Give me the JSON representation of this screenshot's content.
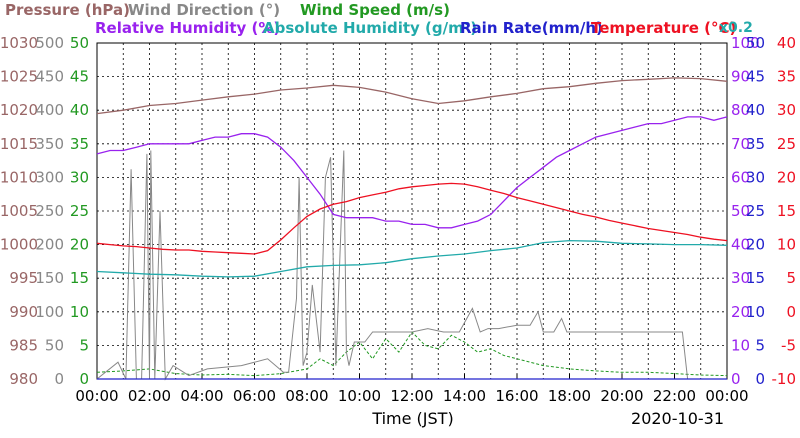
{
  "chart_data": {
    "type": "line",
    "legend": [
      {
        "label": "Pressure (hPa)",
        "color": "#996666"
      },
      {
        "label": "Wind Direction (°)",
        "color": "#888888"
      },
      {
        "label": "Wind Speed (m/s)",
        "color": "#229922"
      },
      {
        "label": "Relative Humidity (%)",
        "color": "#9922ee"
      },
      {
        "label": "Absolute Humidity (g/m³)",
        "color": "#22aaaa"
      },
      {
        "label": "Rain Rate(mm/h)",
        "color": "#2222cc"
      },
      {
        "label": "Temperature (°C)",
        "color": "#ee1122"
      },
      {
        "label": "x0.2",
        "color": "#22aaaa"
      }
    ],
    "xlabel": "Time (JST)",
    "date": "2020-10-31",
    "x_ticks": [
      "00:00",
      "02:00",
      "04:00",
      "06:00",
      "08:00",
      "10:00",
      "12:00",
      "14:00",
      "16:00",
      "18:00",
      "20:00",
      "22:00",
      "00:00"
    ],
    "grid": true,
    "axes": {
      "pressure": {
        "ticks": [
          "980",
          "985",
          "990",
          "995",
          "1000",
          "1005",
          "1010",
          "1015",
          "1020",
          "1025",
          "1030"
        ],
        "ylim": [
          980,
          1030
        ],
        "color": "#996666"
      },
      "wind_direction": {
        "ticks": [
          "0",
          "50",
          "100",
          "150",
          "200",
          "250",
          "300",
          "350",
          "400",
          "450",
          "500"
        ],
        "ylim": [
          0,
          500
        ],
        "color": "#888888"
      },
      "wind_speed": {
        "ticks": [
          "0",
          "5",
          "10",
          "15",
          "20",
          "25",
          "30",
          "35",
          "40",
          "45",
          "50"
        ],
        "ylim": [
          0,
          50
        ],
        "color": "#229922"
      },
      "relative_humidity": {
        "ticks": [
          "0",
          "10",
          "20",
          "30",
          "40",
          "50",
          "60",
          "70",
          "80",
          "90",
          "100"
        ],
        "ylim": [
          0,
          100
        ],
        "color": "#9922ee"
      },
      "rain_rate": {
        "ticks": [
          "0",
          "5",
          "10",
          "15",
          "20",
          "25",
          "30",
          "35",
          "40",
          "45",
          "50"
        ],
        "ylim": [
          0,
          50
        ],
        "color": "#2222cc"
      },
      "temperature": {
        "ticks": [
          "-10",
          "-5",
          "0",
          "5",
          "10",
          "15",
          "20",
          "25",
          "30",
          "35",
          "40"
        ],
        "ylim": [
          -10,
          40
        ],
        "color": "#ee1122"
      }
    },
    "x_range_hours": [
      0,
      24
    ],
    "series": [
      {
        "name": "Pressure (hPa)",
        "color": "#996666",
        "axis": "pressure",
        "x": [
          0,
          1,
          2,
          3,
          4,
          5,
          6,
          7,
          8,
          9,
          10,
          11,
          12,
          13,
          14,
          15,
          16,
          17,
          18,
          19,
          20,
          21,
          22,
          23,
          24
        ],
        "y": [
          1019.5,
          1020.0,
          1020.7,
          1021.0,
          1021.5,
          1022.0,
          1022.4,
          1023.0,
          1023.3,
          1023.7,
          1023.4,
          1022.7,
          1021.7,
          1021.0,
          1021.4,
          1022.0,
          1022.5,
          1023.2,
          1023.5,
          1024.0,
          1024.4,
          1024.6,
          1024.8,
          1024.7,
          1024.3
        ]
      },
      {
        "name": "Relative Humidity (%)",
        "color": "#9922ee",
        "axis": "relative_humidity",
        "x": [
          0,
          0.5,
          1,
          1.5,
          2,
          2.5,
          3,
          3.5,
          4,
          4.5,
          5,
          5.5,
          6,
          6.5,
          7,
          7.5,
          8,
          8.5,
          9,
          9.5,
          10,
          10.5,
          11,
          11.5,
          12,
          12.5,
          13,
          13.5,
          14,
          14.5,
          15,
          15.5,
          16,
          16.5,
          17,
          17.5,
          18,
          18.5,
          19,
          19.5,
          20,
          20.5,
          21,
          21.5,
          22,
          22.5,
          23,
          23.5,
          24
        ],
        "y": [
          67,
          68,
          68,
          69,
          70,
          70,
          70,
          70,
          71,
          72,
          72,
          73,
          73,
          72,
          69,
          65,
          60,
          55,
          49,
          48,
          48,
          48,
          47,
          47,
          46,
          46,
          45,
          45,
          46,
          47,
          49,
          53,
          57,
          60,
          63,
          66,
          68,
          70,
          72,
          73,
          74,
          75,
          76,
          76,
          77,
          78,
          78,
          77,
          78
        ]
      },
      {
        "name": "Absolute Humidity (g/m³) x0.2",
        "color": "#22aaaa",
        "axis": "temperature",
        "x": [
          0,
          1,
          2,
          3,
          4,
          5,
          6,
          7,
          8,
          9,
          10,
          11,
          12,
          13,
          14,
          15,
          16,
          17,
          18,
          19,
          20,
          21,
          22,
          23,
          24
        ],
        "y": [
          6.0,
          5.8,
          5.6,
          5.5,
          5.3,
          5.2,
          5.3,
          6.0,
          6.7,
          6.9,
          7.0,
          7.3,
          7.9,
          8.3,
          8.6,
          9.1,
          9.5,
          10.3,
          10.6,
          10.5,
          10.2,
          10.1,
          10.0,
          10.0,
          9.9
        ]
      },
      {
        "name": "Temperature (°C)",
        "color": "#ee1122",
        "axis": "temperature",
        "x": [
          0,
          0.5,
          1,
          1.5,
          2,
          2.5,
          3,
          3.5,
          4,
          4.5,
          5,
          5.5,
          6,
          6.5,
          7,
          7.5,
          8,
          8.5,
          9,
          9.5,
          10,
          10.5,
          11,
          11.5,
          12,
          12.5,
          13,
          13.5,
          14,
          14.5,
          15,
          15.5,
          16,
          16.5,
          17,
          17.5,
          18,
          18.5,
          19,
          19.5,
          20,
          20.5,
          21,
          21.5,
          22,
          22.5,
          23,
          23.5,
          24
        ],
        "y": [
          10.2,
          10.0,
          9.8,
          9.7,
          9.5,
          9.3,
          9.2,
          9.2,
          9.0,
          8.9,
          8.8,
          8.7,
          8.6,
          9.1,
          10.7,
          12.5,
          14.2,
          15.3,
          16.0,
          16.4,
          17.0,
          17.4,
          17.8,
          18.3,
          18.6,
          18.8,
          19.0,
          19.1,
          19.0,
          18.6,
          18.1,
          17.6,
          17.0,
          16.5,
          16.0,
          15.5,
          15.0,
          14.5,
          14.1,
          13.6,
          13.2,
          12.8,
          12.4,
          12.1,
          11.8,
          11.5,
          11.1,
          10.8,
          10.6
        ]
      },
      {
        "name": "Wind Direction (°)",
        "color": "#888888",
        "axis": "wind_direction",
        "x": [
          0,
          0.8,
          1.1,
          1.3,
          1.5,
          1.7,
          1.9,
          2.0,
          2.05,
          2.2,
          2.4,
          2.6,
          2.9,
          3.5,
          4.2,
          5.5,
          6.5,
          7.1,
          7.3,
          7.6,
          7.7,
          7.85,
          8.0,
          8.2,
          8.5,
          8.7,
          8.9,
          9.1,
          9.4,
          9.5,
          9.6,
          9.8,
          10.2,
          10.5,
          11.2,
          12.0,
          12.6,
          13.2,
          13.8,
          14.3,
          14.6,
          14.9,
          15.3,
          16.0,
          16.5,
          16.8,
          17.0,
          17.4,
          17.7,
          17.9,
          18.1,
          18.6,
          19.5,
          20.5,
          21.5,
          22.3,
          22.5,
          23.0,
          24
        ],
        "y": [
          0,
          25,
          0,
          312,
          0,
          0,
          335,
          0,
          340,
          0,
          250,
          0,
          20,
          5,
          15,
          20,
          30,
          10,
          10,
          120,
          300,
          20,
          40,
          140,
          40,
          300,
          330,
          20,
          340,
          40,
          20,
          55,
          55,
          70,
          70,
          70,
          75,
          70,
          70,
          105,
          70,
          75,
          75,
          80,
          80,
          100,
          70,
          70,
          90,
          70,
          70,
          70,
          70,
          70,
          70,
          70,
          0,
          0,
          0
        ]
      },
      {
        "name": "Wind Speed (m/s)",
        "color": "#229922",
        "axis": "wind_speed",
        "x": [
          0,
          1,
          2,
          3,
          4,
          5,
          6,
          7,
          8,
          8.5,
          9,
          9.5,
          10,
          10.5,
          11,
          11.5,
          12,
          12.5,
          13,
          13.5,
          14,
          14.5,
          15,
          15.5,
          16,
          17,
          18,
          19,
          20,
          21,
          22,
          23,
          24
        ],
        "y": [
          1,
          1.2,
          1.5,
          0.8,
          0.6,
          0.7,
          0.5,
          0.8,
          1.5,
          3.0,
          2.0,
          4.0,
          5.5,
          3.0,
          6.0,
          4.0,
          7.0,
          5.0,
          4.5,
          6.5,
          5.5,
          4.0,
          4.5,
          3.5,
          3.0,
          2.0,
          1.5,
          1.2,
          1.0,
          1.0,
          0.8,
          0.6,
          0.5
        ]
      },
      {
        "name": "Rain Rate(mm/h)",
        "color": "#2222cc",
        "axis": "rain_rate",
        "x": [
          0,
          24
        ],
        "y": [
          0,
          0
        ]
      }
    ]
  }
}
